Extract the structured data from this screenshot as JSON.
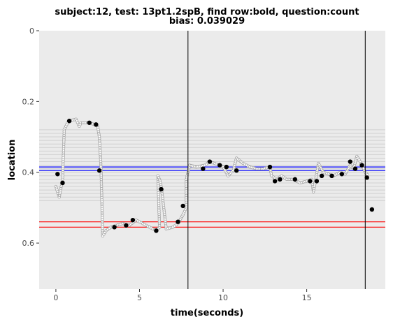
{
  "chart_data": {
    "type": "scatter",
    "title": "subject:12, test: 13pt1.2spB, find row:bold, question:count",
    "subtitle": "bias: 0.039029",
    "xlabel": "time(seconds)",
    "ylabel": "location",
    "xlim": [
      -1.0,
      19.7
    ],
    "ylim": [
      0.0,
      0.73
    ],
    "y_reversed": true,
    "xticks": [
      0,
      5,
      10,
      15
    ],
    "xtick_labels": [
      "0",
      "5",
      "10",
      "15"
    ],
    "yticks": [
      0,
      0.2,
      0.4,
      0.6
    ],
    "ytick_labels": [
      "0",
      "0.2",
      "0.4",
      "0.6"
    ],
    "background": "#ebebeb",
    "gridlines": false,
    "row_lines": {
      "color": "#d0d0d0",
      "y": [
        0.28,
        0.29,
        0.3,
        0.31,
        0.32,
        0.33,
        0.34,
        0.35,
        0.36,
        0.37,
        0.38,
        0.39,
        0.4,
        0.41,
        0.42,
        0.43,
        0.44,
        0.45,
        0.46,
        0.47,
        0.48
      ]
    },
    "blue_lines": {
      "color": "#0000ff",
      "y": [
        0.385,
        0.395
      ]
    },
    "red_lines": {
      "color": "#ff0000",
      "y": [
        0.54,
        0.555
      ]
    },
    "vertical_lines": {
      "color": "#000000",
      "x": [
        7.9,
        18.5
      ]
    },
    "gaze_samples_color": "#a0a0a0",
    "gaze_path": [
      [
        0.0,
        0.44
      ],
      [
        0.2,
        0.47
      ],
      [
        0.4,
        0.42
      ],
      [
        0.5,
        0.28
      ],
      [
        0.7,
        0.26
      ],
      [
        0.8,
        0.255
      ],
      [
        1.2,
        0.25
      ],
      [
        1.4,
        0.27
      ],
      [
        1.5,
        0.26
      ],
      [
        1.8,
        0.26
      ],
      [
        2.0,
        0.26
      ],
      [
        2.3,
        0.265
      ],
      [
        2.5,
        0.27
      ],
      [
        2.6,
        0.3
      ],
      [
        2.65,
        0.34
      ],
      [
        2.7,
        0.39
      ],
      [
        2.8,
        0.58
      ],
      [
        3.0,
        0.565
      ],
      [
        3.3,
        0.555
      ],
      [
        3.6,
        0.55
      ],
      [
        4.0,
        0.545
      ],
      [
        4.4,
        0.55
      ],
      [
        4.8,
        0.535
      ],
      [
        5.2,
        0.545
      ],
      [
        5.6,
        0.555
      ],
      [
        6.0,
        0.565
      ],
      [
        6.2,
        0.555
      ],
      [
        6.1,
        0.41
      ],
      [
        6.2,
        0.42
      ],
      [
        6.3,
        0.44
      ],
      [
        6.6,
        0.56
      ],
      [
        7.0,
        0.555
      ],
      [
        7.3,
        0.545
      ],
      [
        7.6,
        0.52
      ],
      [
        7.8,
        0.5
      ],
      [
        7.8,
        0.42
      ],
      [
        8.0,
        0.38
      ],
      [
        8.4,
        0.385
      ],
      [
        8.9,
        0.38
      ],
      [
        9.2,
        0.37
      ],
      [
        9.5,
        0.375
      ],
      [
        10.0,
        0.385
      ],
      [
        10.3,
        0.41
      ],
      [
        10.6,
        0.395
      ],
      [
        10.8,
        0.36
      ],
      [
        11.2,
        0.375
      ],
      [
        11.6,
        0.385
      ],
      [
        12.0,
        0.39
      ],
      [
        12.4,
        0.39
      ],
      [
        12.8,
        0.385
      ],
      [
        12.9,
        0.41
      ],
      [
        13.2,
        0.42
      ],
      [
        13.5,
        0.41
      ],
      [
        13.8,
        0.42
      ],
      [
        14.2,
        0.42
      ],
      [
        14.6,
        0.43
      ],
      [
        15.0,
        0.425
      ],
      [
        15.3,
        0.42
      ],
      [
        15.4,
        0.455
      ],
      [
        15.5,
        0.43
      ],
      [
        15.7,
        0.375
      ],
      [
        16.0,
        0.4
      ],
      [
        16.3,
        0.405
      ],
      [
        16.6,
        0.41
      ],
      [
        17.0,
        0.4
      ],
      [
        17.3,
        0.405
      ],
      [
        17.6,
        0.38
      ],
      [
        17.8,
        0.39
      ],
      [
        18.0,
        0.355
      ],
      [
        18.2,
        0.37
      ],
      [
        18.5,
        0.4
      ],
      [
        18.7,
        0.41
      ]
    ],
    "fixations": {
      "color": "#000000",
      "x": [
        0.1,
        0.4,
        0.8,
        2.0,
        2.4,
        2.6,
        3.5,
        4.2,
        4.6,
        6.0,
        6.3,
        7.3,
        7.6,
        8.8,
        9.2,
        9.8,
        10.2,
        10.8,
        12.8,
        13.1,
        13.4,
        14.3,
        15.2,
        15.6,
        15.9,
        16.5,
        17.1,
        17.6,
        17.9,
        18.3,
        18.6,
        18.9
      ],
      "y": [
        0.405,
        0.43,
        0.255,
        0.26,
        0.265,
        0.395,
        0.555,
        0.55,
        0.535,
        0.565,
        0.448,
        0.54,
        0.495,
        0.39,
        0.37,
        0.38,
        0.385,
        0.395,
        0.385,
        0.425,
        0.42,
        0.42,
        0.425,
        0.425,
        0.41,
        0.41,
        0.405,
        0.37,
        0.39,
        0.38,
        0.415,
        0.505
      ]
    }
  }
}
